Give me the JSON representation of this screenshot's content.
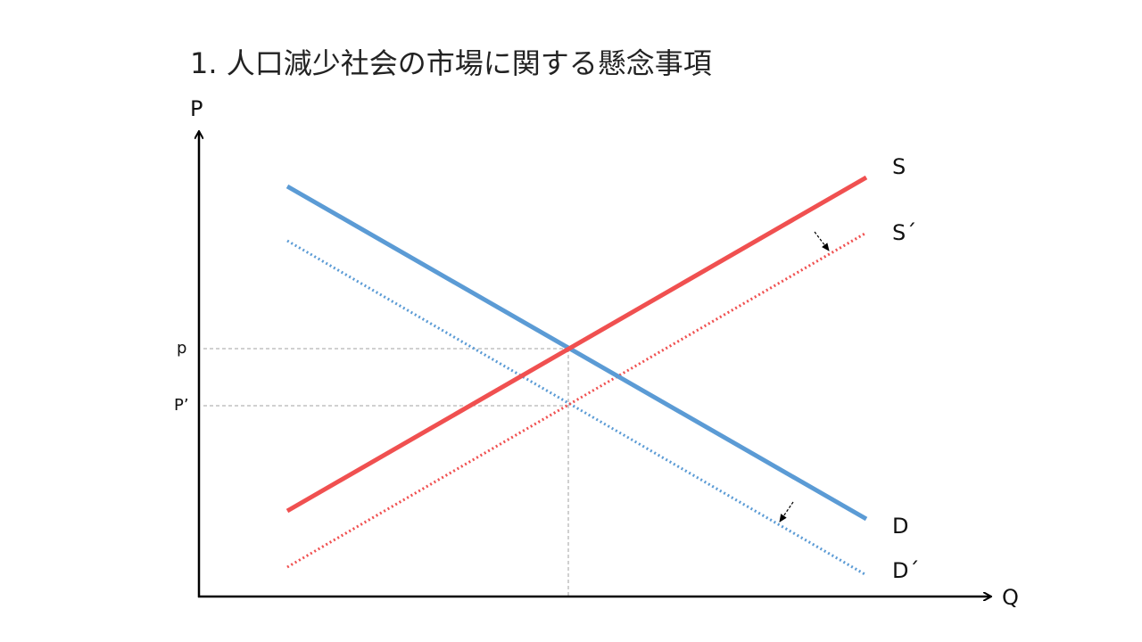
{
  "slide": {
    "title": "1. 人口減少社会の市場に関する懸念事項"
  },
  "axes": {
    "y_label": "P",
    "x_label": "Q"
  },
  "price_ticks": {
    "p": "p",
    "p_prime": "P’"
  },
  "curves": {
    "supply": {
      "label": "S",
      "color": "#f05050",
      "style": "solid"
    },
    "supply_shifted": {
      "label": "S´",
      "color": "#f05050",
      "style": "dotted"
    },
    "demand": {
      "label": "D",
      "color": "#5b9bd5",
      "style": "solid"
    },
    "demand_shifted": {
      "label": "D´",
      "color": "#5b9bd5",
      "style": "dotted"
    }
  },
  "colors": {
    "axis": "#000000",
    "guide": "#a0a0a0",
    "shift_arrow": "#000000"
  }
}
